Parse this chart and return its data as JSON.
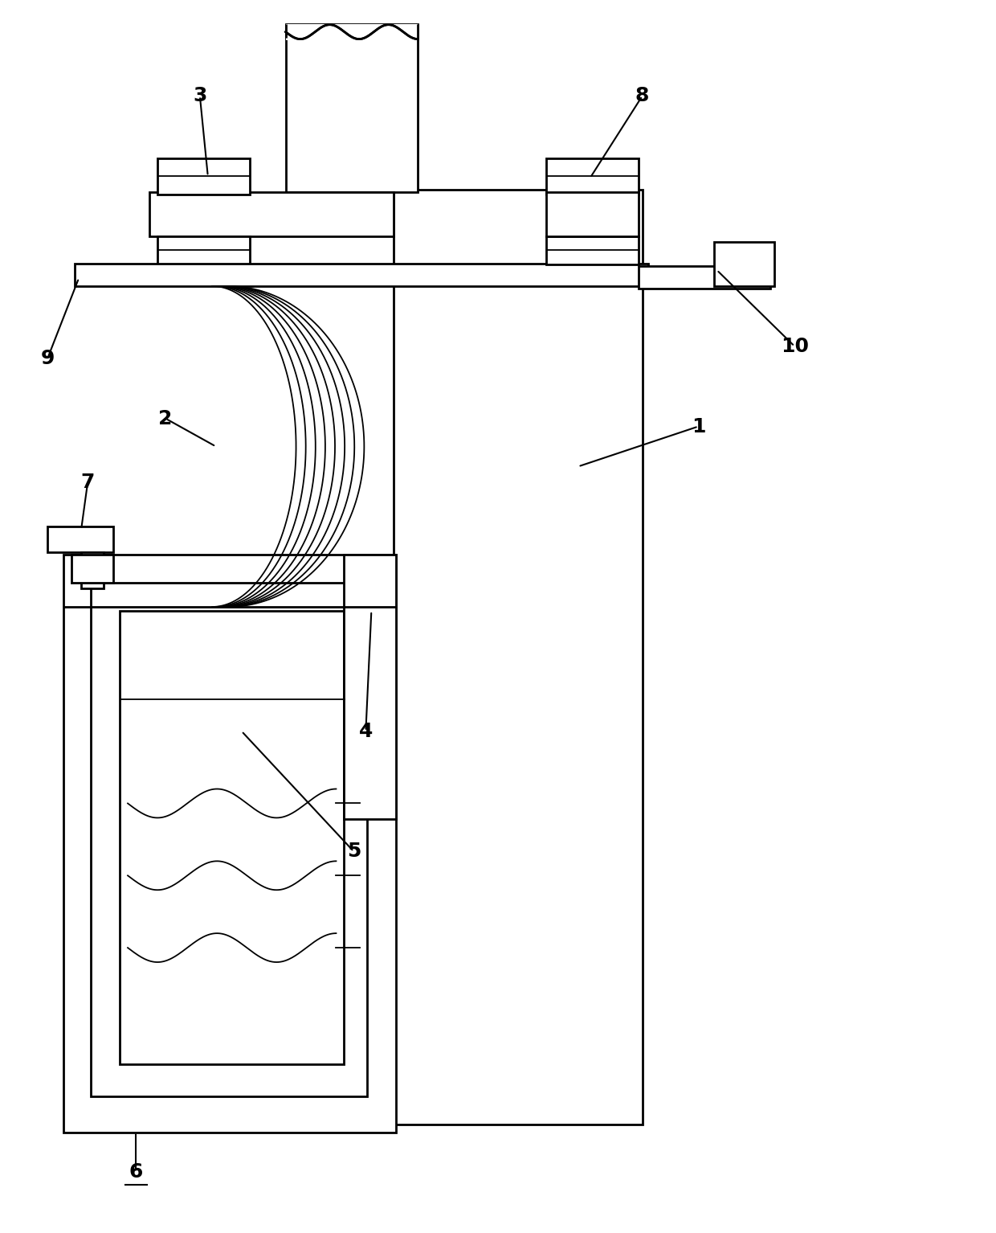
{
  "bg_color": "#ffffff",
  "lc": "#000000",
  "lw": 2.0,
  "lw_t": 1.3,
  "fs": 18,
  "fig_w": 12.4,
  "fig_h": 15.34,
  "dpi": 100
}
